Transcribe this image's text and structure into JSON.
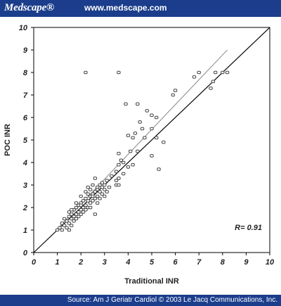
{
  "header": {
    "brand": "Medscape®",
    "site": "www.medscape.com"
  },
  "footer": {
    "source": "Source: Am J Geriatr Cardiol © 2003 Le Jacq Communications, Inc."
  },
  "colors": {
    "bar": "#1b3d8c",
    "identity_line": "#000000",
    "regression_line": "#999999",
    "marker": "#444444"
  },
  "chart_data": {
    "type": "scatter",
    "title": "",
    "xlabel": "Traditional INR",
    "ylabel": "POC INR",
    "xlim": [
      0,
      10
    ],
    "ylim": [
      0,
      10
    ],
    "xticks": [
      0,
      1,
      2,
      3,
      4,
      5,
      6,
      7,
      8,
      9,
      10
    ],
    "yticks": [
      0,
      1,
      2,
      3,
      4,
      5,
      6,
      7,
      8,
      9,
      10
    ],
    "grid": false,
    "annotation": "R= 0.91",
    "lines": [
      {
        "kind": "identity",
        "points": [
          [
            0,
            0
          ],
          [
            10,
            10
          ]
        ]
      },
      {
        "kind": "regression",
        "points": [
          [
            1,
            1.05
          ],
          [
            8.2,
            9.0
          ]
        ]
      }
    ],
    "points": [
      [
        1.0,
        1.0
      ],
      [
        1.1,
        1.1
      ],
      [
        1.2,
        1.0
      ],
      [
        1.2,
        1.3
      ],
      [
        1.3,
        1.2
      ],
      [
        1.3,
        1.5
      ],
      [
        1.4,
        1.1
      ],
      [
        1.4,
        1.4
      ],
      [
        1.5,
        1.0
      ],
      [
        1.5,
        1.3
      ],
      [
        1.5,
        1.6
      ],
      [
        1.5,
        1.8
      ],
      [
        1.6,
        1.2
      ],
      [
        1.6,
        1.5
      ],
      [
        1.6,
        1.7
      ],
      [
        1.7,
        1.4
      ],
      [
        1.7,
        1.6
      ],
      [
        1.7,
        1.9
      ],
      [
        1.8,
        1.5
      ],
      [
        1.8,
        1.7
      ],
      [
        1.8,
        2.0
      ],
      [
        1.9,
        1.6
      ],
      [
        1.9,
        1.8
      ],
      [
        1.9,
        2.1
      ],
      [
        2.0,
        1.7
      ],
      [
        2.0,
        1.9
      ],
      [
        2.0,
        2.2
      ],
      [
        2.0,
        2.5
      ],
      [
        2.1,
        1.8
      ],
      [
        2.1,
        2.0
      ],
      [
        2.1,
        2.3
      ],
      [
        2.2,
        1.9
      ],
      [
        2.2,
        2.1
      ],
      [
        2.2,
        2.4
      ],
      [
        2.2,
        2.7
      ],
      [
        2.3,
        2.0
      ],
      [
        2.3,
        2.3
      ],
      [
        2.3,
        2.6
      ],
      [
        2.4,
        2.2
      ],
      [
        2.4,
        2.5
      ],
      [
        2.4,
        2.8
      ],
      [
        2.5,
        2.3
      ],
      [
        2.5,
        2.6
      ],
      [
        2.5,
        3.0
      ],
      [
        2.6,
        1.7
      ],
      [
        2.6,
        2.4
      ],
      [
        2.6,
        2.7
      ],
      [
        2.6,
        3.3
      ],
      [
        2.7,
        2.2
      ],
      [
        2.7,
        2.5
      ],
      [
        2.7,
        2.9
      ],
      [
        2.8,
        2.4
      ],
      [
        2.8,
        2.7
      ],
      [
        2.8,
        3.0
      ],
      [
        2.9,
        2.6
      ],
      [
        2.9,
        2.9
      ],
      [
        3.0,
        2.5
      ],
      [
        3.0,
        2.8
      ],
      [
        3.0,
        3.0
      ],
      [
        3.1,
        2.7
      ],
      [
        3.1,
        3.2
      ],
      [
        3.2,
        2.9
      ],
      [
        3.3,
        3.4
      ],
      [
        3.5,
        3.0
      ],
      [
        3.5,
        3.2
      ],
      [
        3.5,
        3.6
      ],
      [
        3.6,
        3.0
      ],
      [
        3.6,
        3.3
      ],
      [
        3.6,
        3.9
      ],
      [
        3.6,
        4.4
      ],
      [
        3.7,
        4.1
      ],
      [
        3.8,
        3.5
      ],
      [
        3.8,
        4.0
      ],
      [
        4.0,
        5.2
      ],
      [
        4.0,
        3.8
      ],
      [
        4.1,
        4.5
      ],
      [
        4.2,
        5.1
      ],
      [
        4.2,
        3.9
      ],
      [
        4.3,
        5.3
      ],
      [
        4.4,
        4.5
      ],
      [
        4.5,
        5.8
      ],
      [
        4.6,
        5.5
      ],
      [
        4.7,
        5.1
      ],
      [
        4.8,
        6.3
      ],
      [
        5.0,
        4.3
      ],
      [
        5.0,
        6.1
      ],
      [
        5.0,
        5.5
      ],
      [
        5.2,
        5.1
      ],
      [
        5.2,
        6.0
      ],
      [
        5.3,
        3.7
      ],
      [
        5.5,
        4.9
      ],
      [
        5.9,
        7.0
      ],
      [
        6.0,
        7.2
      ],
      [
        6.8,
        7.8
      ],
      [
        7.0,
        8.0
      ],
      [
        7.5,
        7.3
      ],
      [
        7.6,
        7.6
      ],
      [
        7.7,
        8.0
      ],
      [
        8.0,
        8.0
      ],
      [
        8.2,
        8.0
      ],
      [
        2.2,
        8.0
      ],
      [
        3.6,
        8.0
      ],
      [
        3.9,
        6.6
      ],
      [
        4.4,
        6.6
      ],
      [
        1.6,
        1.9
      ],
      [
        1.8,
        2.2
      ],
      [
        2.0,
        2.1
      ],
      [
        2.3,
        2.9
      ],
      [
        2.5,
        2.5
      ],
      [
        2.7,
        2.8
      ],
      [
        2.9,
        3.1
      ],
      [
        2.4,
        2.0
      ]
    ]
  }
}
